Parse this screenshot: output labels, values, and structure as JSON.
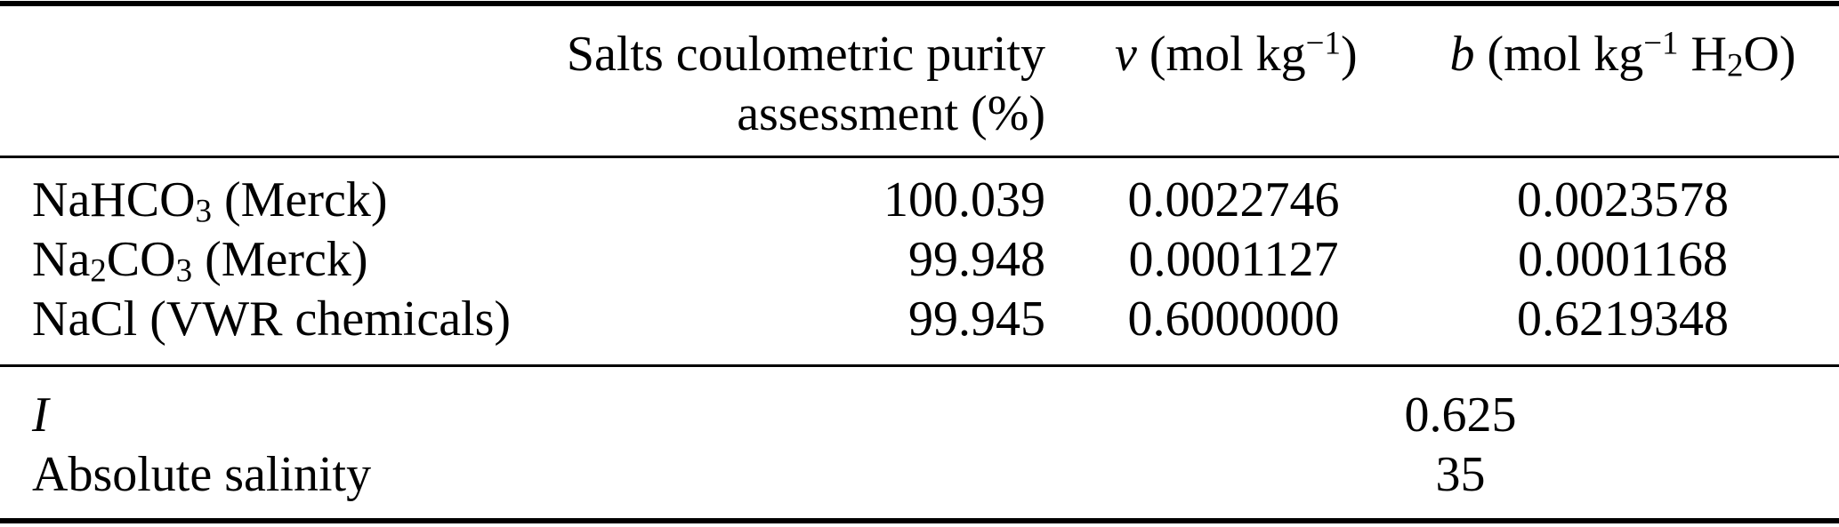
{
  "table": {
    "header": {
      "purity_line1": "Salts coulometric purity",
      "purity_line2": "assessment (%)",
      "nu": {
        "symbol": "ν",
        "unit_pre": " (mol kg",
        "sup": "−1",
        "unit_post": ")"
      },
      "b": {
        "symbol": "b",
        "unit_pre": " (mol kg",
        "sup": "−1",
        "unit_mid": " H",
        "sub": "2",
        "unit_post": "O)"
      }
    },
    "rows": [
      {
        "label_parts": [
          "NaHCO",
          "3",
          " (Merck)"
        ],
        "purity": "100.039",
        "nu": "0.0022746",
        "b": "0.0023578"
      },
      {
        "label_parts": [
          "Na",
          "2",
          "CO",
          "3",
          " (Merck)"
        ],
        "purity": "99.948",
        "nu": "0.0001127",
        "b": "0.0001168"
      },
      {
        "label_parts": [
          "NaCl (VWR chemicals)"
        ],
        "purity": "99.945",
        "nu": "0.6000000",
        "b": "0.6219348"
      }
    ],
    "summary": [
      {
        "label": "I",
        "value": "0.625"
      },
      {
        "label": "Absolute salinity",
        "value": "35"
      }
    ],
    "colors": {
      "background": "#ffffff",
      "text": "#000000",
      "rule": "#000000"
    }
  }
}
